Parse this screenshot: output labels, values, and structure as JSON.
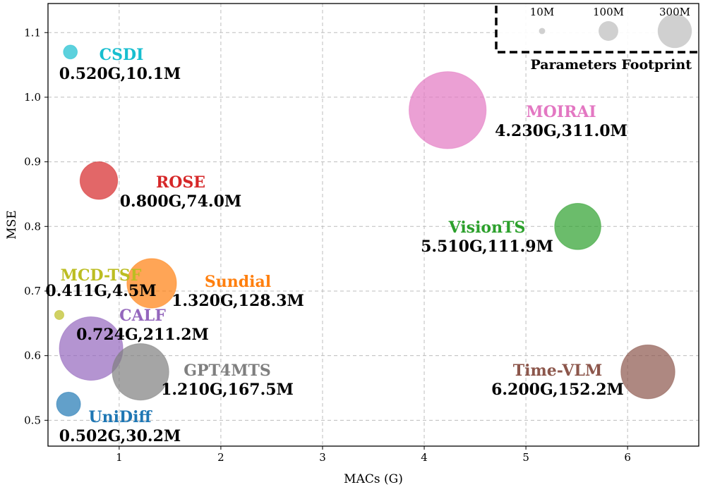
{
  "chart_data": {
    "type": "scatter",
    "xlabel": "MACs (G)",
    "ylabel": "MSE",
    "xlim": [
      0.3,
      6.7
    ],
    "ylim": [
      0.46,
      1.145
    ],
    "xticks": [
      1,
      2,
      3,
      4,
      5,
      6
    ],
    "yticks": [
      0.5,
      0.6,
      0.7,
      0.8,
      0.9,
      1.0,
      1.1
    ],
    "xtick_labels": [
      "1",
      "2",
      "3",
      "4",
      "5",
      "6"
    ],
    "ytick_labels": [
      "0.5",
      "0.6",
      "0.7",
      "0.8",
      "0.9",
      "1.0",
      "1.1"
    ],
    "grid": true,
    "grid_style": "dashed",
    "points": [
      {
        "name": "CSDI",
        "x": 0.52,
        "y": 1.07,
        "params": 10.1,
        "stats": "0.520G,10.1M",
        "color": "#17becf"
      },
      {
        "name": "MOIRAI",
        "x": 4.23,
        "y": 0.98,
        "params": 311.0,
        "stats": "4.230G,311.0M",
        "color": "#e377c2"
      },
      {
        "name": "ROSE",
        "x": 0.8,
        "y": 0.871,
        "params": 74.0,
        "stats": "0.800G,74.0M",
        "color": "#d62728"
      },
      {
        "name": "VisionTS",
        "x": 5.51,
        "y": 0.8,
        "params": 111.9,
        "stats": "5.510G,111.9M",
        "color": "#2ca02c"
      },
      {
        "name": "MCD-TSF",
        "x": 0.411,
        "y": 0.663,
        "params": 4.5,
        "stats": "0.411G,4.5M",
        "color": "#bcbd22"
      },
      {
        "name": "Sundial",
        "x": 1.32,
        "y": 0.712,
        "params": 128.3,
        "stats": "1.320G,128.3M",
        "color": "#ff7f0e"
      },
      {
        "name": "CALF",
        "x": 0.724,
        "y": 0.611,
        "params": 211.2,
        "stats": "0.724G,211.2M",
        "color": "#9467bd"
      },
      {
        "name": "GPT4MTS",
        "x": 1.21,
        "y": 0.575,
        "params": 167.5,
        "stats": "1.210G,167.5M",
        "color": "#7f7f7f"
      },
      {
        "name": "Time-VLM",
        "x": 6.2,
        "y": 0.575,
        "params": 152.2,
        "stats": "6.200G,152.2M",
        "color": "#8c564b"
      },
      {
        "name": "UniDiff",
        "x": 0.502,
        "y": 0.525,
        "params": 30.2,
        "stats": "0.502G,30.2M",
        "color": "#1f77b4"
      }
    ],
    "legend": {
      "title": "Parameters Footprint",
      "placement": "top-right",
      "sizes": [
        {
          "label": "10M",
          "params": 10
        },
        {
          "label": "100M",
          "params": 100
        },
        {
          "label": "300M",
          "params": 300
        }
      ],
      "marker_color": "#c8c8c8"
    }
  }
}
